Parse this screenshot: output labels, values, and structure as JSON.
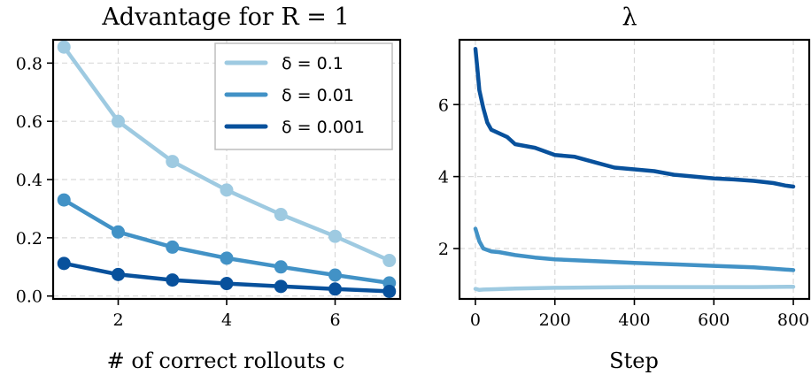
{
  "chart_data": [
    {
      "type": "line",
      "title": "Advantage for R = 1",
      "xlabel": "# of correct rollouts c",
      "ylabel": "",
      "x": [
        1,
        2,
        3,
        4,
        5,
        6,
        7
      ],
      "xticks": [
        "2",
        "4",
        "6"
      ],
      "yticks": [
        "0.0",
        "0.2",
        "0.4",
        "0.6",
        "0.8"
      ],
      "xlim": [
        0.8,
        7.2
      ],
      "ylim": [
        -0.01,
        0.88
      ],
      "grid": true,
      "legend_position": "top-right",
      "series": [
        {
          "name": "δ = 0.1",
          "color": "#9ecae1",
          "values": [
            0.855,
            0.6,
            0.462,
            0.364,
            0.28,
            0.205,
            0.122
          ]
        },
        {
          "name": "δ = 0.01",
          "color": "#4292c6",
          "values": [
            0.33,
            0.22,
            0.168,
            0.13,
            0.1,
            0.072,
            0.045
          ]
        },
        {
          "name": "δ = 0.001",
          "color": "#08519c",
          "values": [
            0.112,
            0.074,
            0.055,
            0.043,
            0.033,
            0.024,
            0.016
          ]
        }
      ]
    },
    {
      "type": "line",
      "title": "λ",
      "xlabel": "Step",
      "ylabel": "",
      "xticks": [
        "0",
        "200",
        "400",
        "600",
        "800"
      ],
      "yticks": [
        "2",
        "4",
        "6"
      ],
      "xlim": [
        -40,
        840
      ],
      "ylim": [
        0.6,
        7.8
      ],
      "grid": true,
      "series": [
        {
          "color": "#9ecae1",
          "x": [
            0,
            10,
            20,
            50,
            100,
            200,
            300,
            400,
            500,
            600,
            700,
            800
          ],
          "values": [
            0.88,
            0.85,
            0.86,
            0.87,
            0.89,
            0.91,
            0.92,
            0.93,
            0.93,
            0.93,
            0.93,
            0.94
          ]
        },
        {
          "color": "#4292c6",
          "x": [
            0,
            10,
            20,
            40,
            60,
            100,
            150,
            200,
            300,
            400,
            500,
            600,
            700,
            800
          ],
          "values": [
            2.55,
            2.2,
            2.0,
            1.92,
            1.9,
            1.82,
            1.75,
            1.7,
            1.65,
            1.6,
            1.56,
            1.52,
            1.48,
            1.4
          ]
        },
        {
          "color": "#08519c",
          "x": [
            0,
            5,
            10,
            20,
            30,
            40,
            60,
            80,
            100,
            150,
            200,
            250,
            300,
            350,
            400,
            450,
            500,
            550,
            600,
            650,
            700,
            750,
            780,
            800
          ],
          "values": [
            7.55,
            7.0,
            6.4,
            5.9,
            5.5,
            5.3,
            5.2,
            5.1,
            4.9,
            4.8,
            4.6,
            4.55,
            4.4,
            4.25,
            4.2,
            4.15,
            4.05,
            4.0,
            3.95,
            3.92,
            3.88,
            3.82,
            3.75,
            3.72
          ]
        }
      ]
    }
  ]
}
